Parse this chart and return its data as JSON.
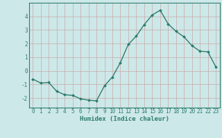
{
  "x": [
    0,
    1,
    2,
    3,
    4,
    5,
    6,
    7,
    8,
    9,
    10,
    11,
    12,
    13,
    14,
    15,
    16,
    17,
    18,
    19,
    20,
    21,
    22,
    23
  ],
  "y": [
    -0.6,
    -0.9,
    -0.85,
    -1.5,
    -1.75,
    -1.8,
    -2.05,
    -2.15,
    -2.2,
    -1.1,
    -0.45,
    0.6,
    1.95,
    2.55,
    3.4,
    4.1,
    4.45,
    3.45,
    2.9,
    2.5,
    1.85,
    1.45,
    1.4,
    0.3
  ],
  "line_color": "#2d7c6e",
  "marker": "D",
  "marker_size": 2.0,
  "line_width": 1.0,
  "bg_color": "#cde8e8",
  "grid_color_v": "#c8a8a8",
  "grid_color_h": "#c8a8a8",
  "xlabel": "Humidex (Indice chaleur)",
  "xlim": [
    -0.5,
    23.5
  ],
  "ylim": [
    -2.7,
    5.0
  ],
  "yticks": [
    -2,
    -1,
    0,
    1,
    2,
    3,
    4
  ],
  "xticks": [
    0,
    1,
    2,
    3,
    4,
    5,
    6,
    7,
    8,
    9,
    10,
    11,
    12,
    13,
    14,
    15,
    16,
    17,
    18,
    19,
    20,
    21,
    22,
    23
  ],
  "tick_label_size": 5.5,
  "xlabel_size": 6.5
}
